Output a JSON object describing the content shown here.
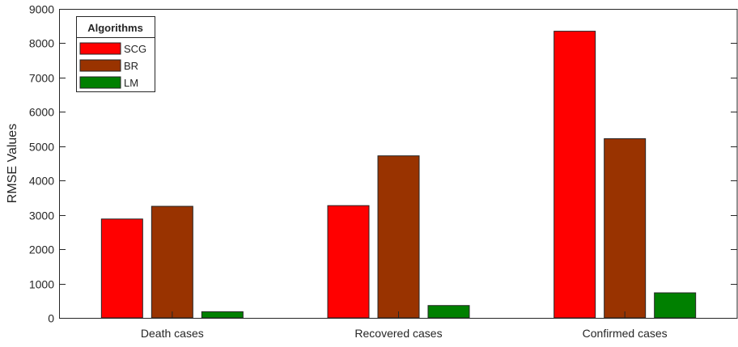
{
  "chart_data": {
    "type": "bar",
    "title": "",
    "xlabel": "",
    "ylabel": "RMSE Values",
    "ylim": [
      0,
      9000
    ],
    "yticks": [
      0,
      1000,
      2000,
      3000,
      4000,
      5000,
      6000,
      7000,
      8000,
      9000
    ],
    "categories": [
      "Death cases",
      "Recovered cases",
      "Confirmed cases"
    ],
    "series": [
      {
        "name": "SCG",
        "color": "#ff0000",
        "values": [
          2880,
          3270,
          8350
        ]
      },
      {
        "name": "BR",
        "color": "#993300",
        "values": [
          3250,
          4720,
          5220
        ]
      },
      {
        "name": "LM",
        "color": "#008000",
        "values": [
          180,
          360,
          730
        ]
      }
    ],
    "legend": {
      "title": "Algorithms",
      "position": "top-left"
    },
    "grid": false
  }
}
